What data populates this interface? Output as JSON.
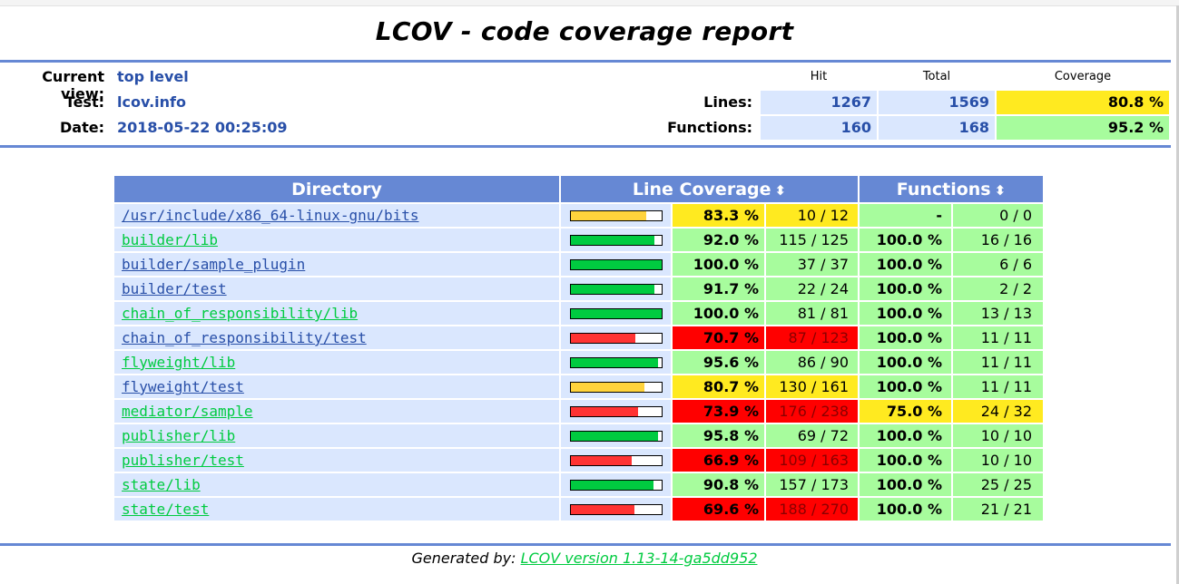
{
  "title": "LCOV - code coverage report",
  "header": {
    "current_view_label": "Current view:",
    "current_view_value": "top level",
    "test_label": "Test:",
    "test_value": "lcov.info",
    "date_label": "Date:",
    "date_value": "2018-05-22 00:25:09"
  },
  "summary": {
    "col_hit": "Hit",
    "col_total": "Total",
    "col_coverage": "Coverage",
    "lines_label": "Lines:",
    "lines_hit": "1267",
    "lines_total": "1569",
    "lines_coverage": "80.8 %",
    "functions_label": "Functions:",
    "functions_hit": "160",
    "functions_total": "168",
    "functions_coverage": "95.2 %"
  },
  "table": {
    "col_directory": "Directory",
    "col_line_coverage": "Line Coverage",
    "col_functions": "Functions",
    "sort_icon": "⬍",
    "rows": [
      {
        "dir": "/usr/include/x86_64-linux-gnu/bits",
        "link": "blue",
        "level": "yellow",
        "line_fraction": 0.833,
        "line_pct": "83.3 %",
        "line_cnt": "10 / 12",
        "func_level": "green",
        "func_pct": "-",
        "func_cnt": "0 / 0"
      },
      {
        "dir": "builder/lib",
        "link": "green",
        "level": "green",
        "line_fraction": 0.92,
        "line_pct": "92.0 %",
        "line_cnt": "115 / 125",
        "func_level": "green",
        "func_pct": "100.0 %",
        "func_cnt": "16 / 16"
      },
      {
        "dir": "builder/sample_plugin",
        "link": "blue",
        "level": "green",
        "line_fraction": 1.0,
        "line_pct": "100.0 %",
        "line_cnt": "37 / 37",
        "func_level": "green",
        "func_pct": "100.0 %",
        "func_cnt": "6 / 6"
      },
      {
        "dir": "builder/test",
        "link": "blue",
        "level": "green",
        "line_fraction": 0.917,
        "line_pct": "91.7 %",
        "line_cnt": "22 / 24",
        "func_level": "green",
        "func_pct": "100.0 %",
        "func_cnt": "2 / 2"
      },
      {
        "dir": "chain_of_responsibility/lib",
        "link": "green",
        "level": "green",
        "line_fraction": 1.0,
        "line_pct": "100.0 %",
        "line_cnt": "81 / 81",
        "func_level": "green",
        "func_pct": "100.0 %",
        "func_cnt": "13 / 13"
      },
      {
        "dir": "chain_of_responsibility/test",
        "link": "blue",
        "level": "red",
        "line_fraction": 0.707,
        "line_pct": "70.7 %",
        "line_cnt": "87 / 123",
        "func_level": "green",
        "func_pct": "100.0 %",
        "func_cnt": "11 / 11"
      },
      {
        "dir": "flyweight/lib",
        "link": "green",
        "level": "green",
        "line_fraction": 0.956,
        "line_pct": "95.6 %",
        "line_cnt": "86 / 90",
        "func_level": "green",
        "func_pct": "100.0 %",
        "func_cnt": "11 / 11"
      },
      {
        "dir": "flyweight/test",
        "link": "blue",
        "level": "yellow",
        "line_fraction": 0.807,
        "line_pct": "80.7 %",
        "line_cnt": "130 / 161",
        "func_level": "green",
        "func_pct": "100.0 %",
        "func_cnt": "11 / 11"
      },
      {
        "dir": "mediator/sample",
        "link": "green",
        "level": "red",
        "line_fraction": 0.739,
        "line_pct": "73.9 %",
        "line_cnt": "176 / 238",
        "func_level": "yellow",
        "func_pct": "75.0 %",
        "func_cnt": "24 / 32"
      },
      {
        "dir": "publisher/lib",
        "link": "green",
        "level": "green",
        "line_fraction": 0.958,
        "line_pct": "95.8 %",
        "line_cnt": "69 / 72",
        "func_level": "green",
        "func_pct": "100.0 %",
        "func_cnt": "10 / 10"
      },
      {
        "dir": "publisher/test",
        "link": "green",
        "level": "red",
        "line_fraction": 0.669,
        "line_pct": "66.9 %",
        "line_cnt": "109 / 163",
        "func_level": "green",
        "func_pct": "100.0 %",
        "func_cnt": "10 / 10"
      },
      {
        "dir": "state/lib",
        "link": "green",
        "level": "green",
        "line_fraction": 0.908,
        "line_pct": "90.8 %",
        "line_cnt": "157 / 173",
        "func_level": "green",
        "func_pct": "100.0 %",
        "func_cnt": "25 / 25"
      },
      {
        "dir": "state/test",
        "link": "green",
        "level": "red",
        "line_fraction": 0.696,
        "line_pct": "69.6 %",
        "line_cnt": "188 / 270",
        "func_level": "green",
        "func_pct": "100.0 %",
        "func_cnt": "21 / 21"
      }
    ]
  },
  "footer": {
    "prefix": "Generated by:",
    "link": "LCOV version 1.13-14-ga5dd952"
  },
  "colors": {
    "header_blue": "#6688d4",
    "cell_blue": "#dae7fe",
    "good": "#a7fc9d",
    "medium": "#ffea20",
    "low": "#ff0000",
    "bar_good": "#00cb40",
    "bar_medium": "#ffd33c",
    "bar_low": "#ff3333"
  }
}
